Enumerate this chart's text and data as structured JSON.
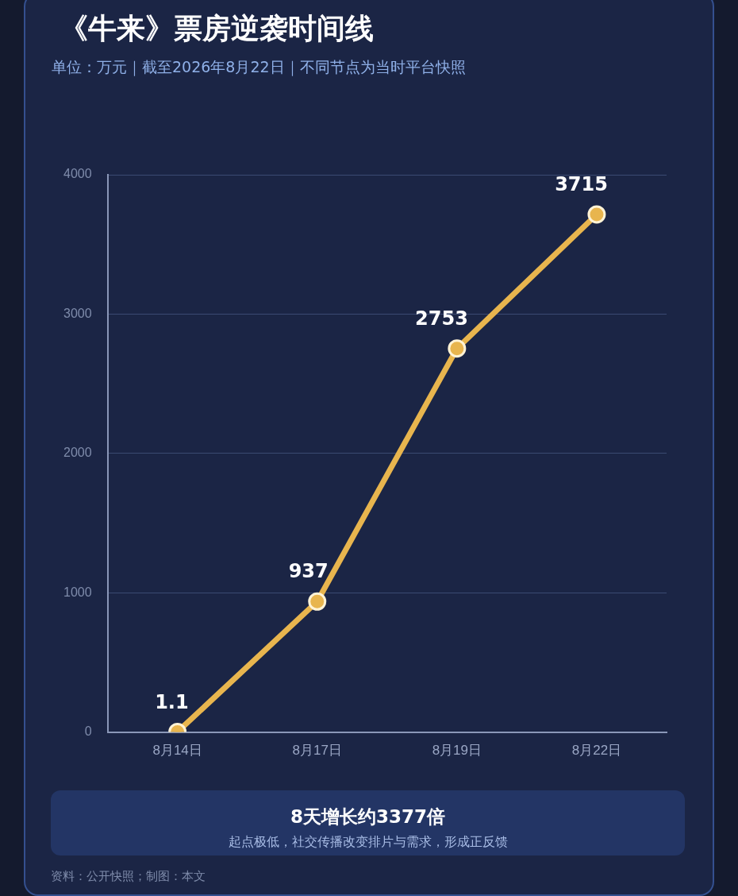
{
  "chart_data": {
    "type": "line",
    "title": "《牛来》票房逆袭时间线",
    "subtitle": "单位：万元｜截至2026年8月22日｜不同节点为当时平台快照",
    "categories": [
      "8月14日",
      "8月17日",
      "8月19日",
      "8月22日"
    ],
    "series": [
      {
        "color": "#e8b54e",
        "values": [
          1.1,
          937,
          2753,
          3715
        ]
      }
    ],
    "ylim": [
      0,
      4000
    ],
    "yticks": [
      0,
      1000,
      2000,
      3000,
      4000
    ],
    "grid": "y",
    "legend": false,
    "marker": "circle",
    "line_style": "solid",
    "data_labels": true,
    "annotations": [
      "8天增长约3377倍",
      "起点极低，社交传播改变排片与需求，形成正反馈",
      "资料：公开快照；制图：本文"
    ]
  }
}
